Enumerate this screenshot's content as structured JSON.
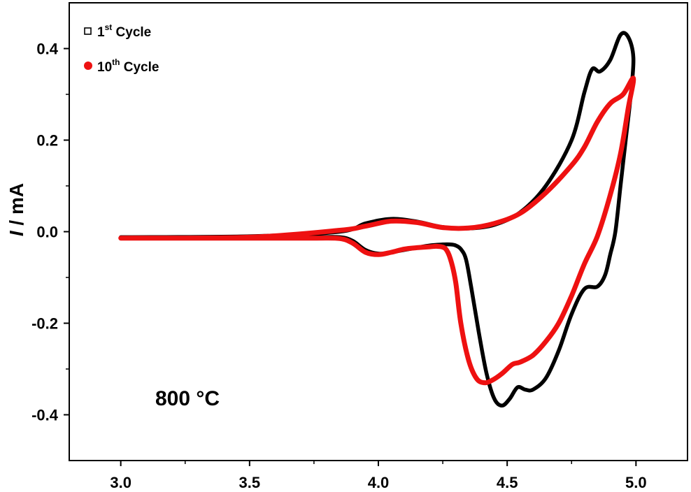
{
  "chart_data": {
    "type": "line",
    "title": "",
    "xlabel": "",
    "ylabel": "I / mA",
    "ylabel_italic_part": "I",
    "ylabel_rest": " / mA",
    "xlim": [
      2.8,
      5.2
    ],
    "ylim": [
      -0.5,
      0.5
    ],
    "x_ticks": [
      3.0,
      3.5,
      4.0,
      4.5,
      5.0
    ],
    "x_tick_labels": [
      "3.0",
      "3.5",
      "4.0",
      "4.5",
      "5.0"
    ],
    "y_ticks": [
      -0.4,
      -0.2,
      0.0,
      0.2,
      0.4
    ],
    "y_tick_labels": [
      "-0.4",
      "-0.2",
      "0.0",
      "0.2",
      "0.4"
    ],
    "grid": false,
    "legend_position": "top-left",
    "annotation": "800 °C",
    "series": [
      {
        "name": "1st Cycle",
        "name_base": "1",
        "name_sup": "st",
        "name_rest": " Cycle",
        "color": "#000000",
        "marker": "open-square",
        "x": [
          3.0,
          3.5,
          3.85,
          3.95,
          4.05,
          4.15,
          4.25,
          4.35,
          4.45,
          4.55,
          4.65,
          4.75,
          4.8,
          4.83,
          4.86,
          4.9,
          4.94,
          4.97,
          4.99,
          4.98,
          4.96,
          4.94,
          4.92,
          4.9,
          4.88,
          4.85,
          4.8,
          4.75,
          4.7,
          4.65,
          4.6,
          4.57,
          4.54,
          4.51,
          4.48,
          4.45,
          4.42,
          4.39,
          4.36,
          4.34,
          4.32,
          4.3,
          4.28,
          4.25,
          4.2,
          4.15,
          4.1,
          4.05,
          4.0,
          3.95,
          3.9,
          3.85,
          3.75,
          3.5,
          3.0
        ],
        "y": [
          -0.012,
          -0.01,
          0.0,
          0.018,
          0.028,
          0.022,
          0.01,
          0.007,
          0.015,
          0.042,
          0.1,
          0.2,
          0.305,
          0.355,
          0.35,
          0.375,
          0.43,
          0.425,
          0.38,
          0.3,
          0.2,
          0.1,
          0.0,
          -0.05,
          -0.095,
          -0.12,
          -0.125,
          -0.18,
          -0.26,
          -0.32,
          -0.345,
          -0.345,
          -0.34,
          -0.365,
          -0.38,
          -0.365,
          -0.31,
          -0.22,
          -0.12,
          -0.06,
          -0.038,
          -0.03,
          -0.028,
          -0.028,
          -0.03,
          -0.035,
          -0.04,
          -0.045,
          -0.048,
          -0.04,
          -0.02,
          -0.012,
          -0.012,
          -0.013,
          -0.013
        ]
      },
      {
        "name": "10th Cycle",
        "name_base": "10",
        "name_sup": "th",
        "name_rest": " Cycle",
        "color": "#ee1111",
        "marker": "filled-circle",
        "x": [
          3.0,
          3.5,
          3.85,
          3.95,
          4.05,
          4.15,
          4.25,
          4.35,
          4.45,
          4.55,
          4.65,
          4.75,
          4.8,
          4.85,
          4.9,
          4.95,
          4.99,
          4.97,
          4.94,
          4.9,
          4.85,
          4.8,
          4.75,
          4.7,
          4.65,
          4.6,
          4.55,
          4.52,
          4.48,
          4.44,
          4.41,
          4.38,
          4.35,
          4.32,
          4.3,
          4.28,
          4.26,
          4.23,
          4.2,
          4.15,
          4.1,
          4.05,
          4.0,
          3.95,
          3.9,
          3.85,
          3.75,
          3.5,
          3.0
        ],
        "y": [
          -0.014,
          -0.012,
          0.003,
          0.012,
          0.023,
          0.02,
          0.009,
          0.008,
          0.018,
          0.04,
          0.085,
          0.145,
          0.185,
          0.24,
          0.28,
          0.3,
          0.335,
          0.27,
          0.17,
          0.08,
          -0.01,
          -0.07,
          -0.14,
          -0.2,
          -0.24,
          -0.27,
          -0.285,
          -0.29,
          -0.31,
          -0.325,
          -0.33,
          -0.32,
          -0.28,
          -0.2,
          -0.11,
          -0.06,
          -0.037,
          -0.032,
          -0.033,
          -0.035,
          -0.038,
          -0.045,
          -0.05,
          -0.045,
          -0.025,
          -0.015,
          -0.014,
          -0.014,
          -0.014
        ]
      }
    ]
  }
}
